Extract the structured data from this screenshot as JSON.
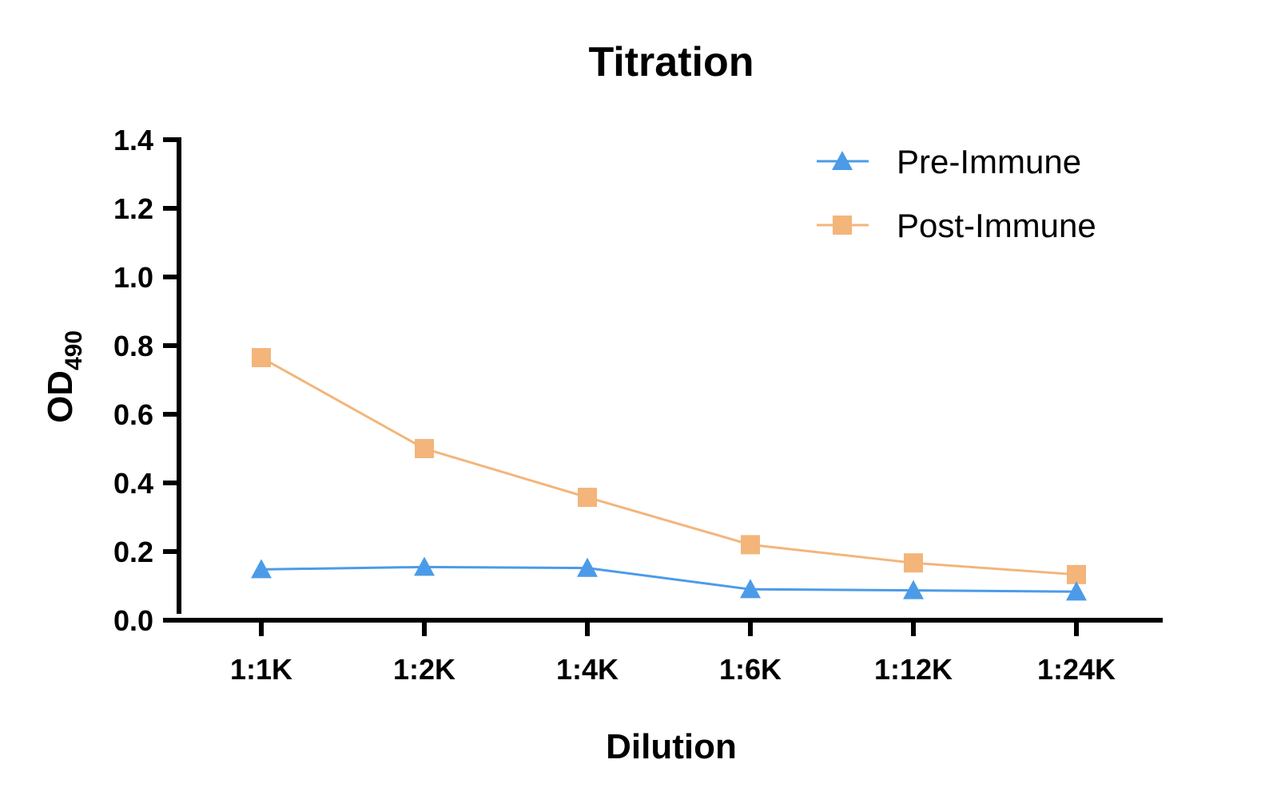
{
  "chart_data": {
    "type": "line",
    "title": "Titration",
    "xlabel": "Dilution",
    "ylabel": "OD",
    "ylabel_subscript": "490",
    "categories": [
      "1:1K",
      "1:2K",
      "1:4K",
      "1:6K",
      "1:12K",
      "1:24K"
    ],
    "ylim": [
      0,
      1.4
    ],
    "yticks": [
      "0.0",
      "0.2",
      "0.4",
      "0.6",
      "0.8",
      "1.0",
      "1.2",
      "1.4"
    ],
    "grid": false,
    "legend_position": "top-right",
    "series": [
      {
        "name": "Pre-Immune",
        "marker": "triangle",
        "color": "#4c9be8",
        "values": [
          0.148,
          0.155,
          0.152,
          0.09,
          0.087,
          0.083
        ]
      },
      {
        "name": "Post-Immune",
        "marker": "square",
        "color": "#f3b57a",
        "values": [
          0.765,
          0.5,
          0.358,
          0.22,
          0.167,
          0.133
        ]
      }
    ]
  }
}
